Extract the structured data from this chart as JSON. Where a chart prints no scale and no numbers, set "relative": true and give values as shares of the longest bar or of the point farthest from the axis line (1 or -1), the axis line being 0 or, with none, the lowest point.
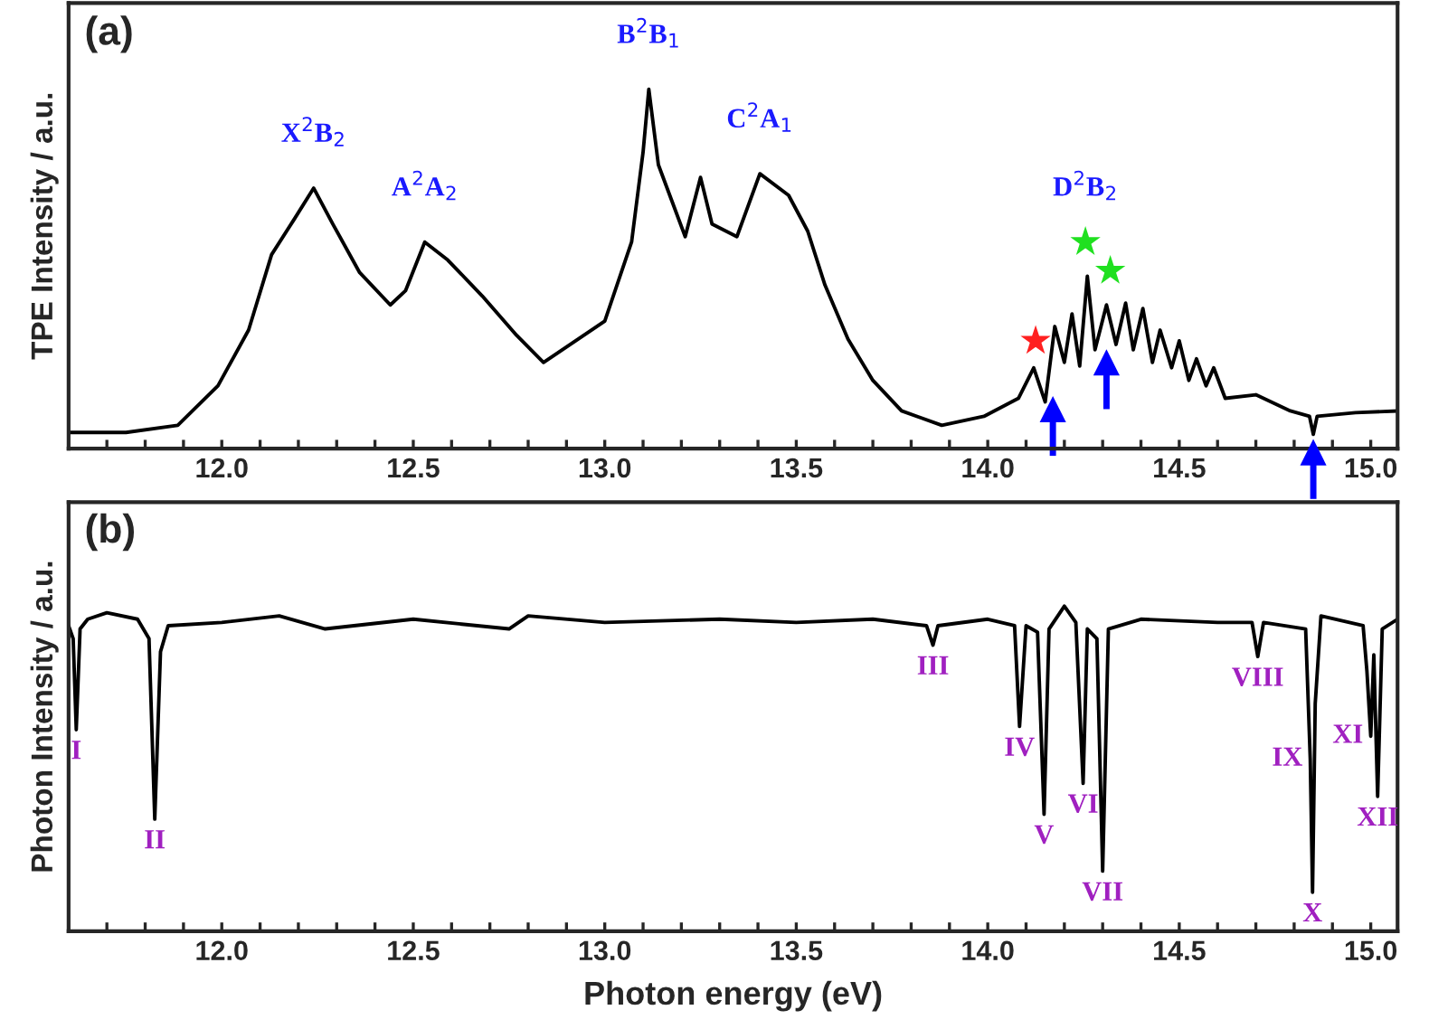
{
  "chart_data": [
    {
      "type": "line",
      "relative": true,
      "ylabel": "TPE Intensity / a.u.",
      "xlim": [
        11.6,
        15.07
      ],
      "xticks": [
        {
          "value": 11.7,
          "label": null
        },
        {
          "value": 11.8,
          "label": null
        },
        {
          "value": 11.9,
          "label": null
        },
        {
          "value": 12.0,
          "label": "12.0"
        },
        {
          "value": 12.1,
          "label": null
        },
        {
          "value": 12.2,
          "label": null
        },
        {
          "value": 12.3,
          "label": null
        },
        {
          "value": 12.4,
          "label": null
        },
        {
          "value": 12.5,
          "label": "12.5"
        },
        {
          "value": 12.6,
          "label": null
        },
        {
          "value": 12.7,
          "label": null
        },
        {
          "value": 12.8,
          "label": null
        },
        {
          "value": 12.9,
          "label": null
        },
        {
          "value": 13.0,
          "label": "13.0"
        },
        {
          "value": 13.1,
          "label": null
        },
        {
          "value": 13.2,
          "label": null
        },
        {
          "value": 13.3,
          "label": null
        },
        {
          "value": 13.4,
          "label": null
        },
        {
          "value": 13.5,
          "label": "13.5"
        },
        {
          "value": 13.6,
          "label": null
        },
        {
          "value": 13.7,
          "label": null
        },
        {
          "value": 13.8,
          "label": null
        },
        {
          "value": 13.9,
          "label": null
        },
        {
          "value": 14.0,
          "label": "14.0"
        },
        {
          "value": 14.1,
          "label": null
        },
        {
          "value": 14.2,
          "label": null
        },
        {
          "value": 14.3,
          "label": null
        },
        {
          "value": 14.4,
          "label": null
        },
        {
          "value": 14.5,
          "label": "14.5"
        },
        {
          "value": 14.6,
          "label": null
        },
        {
          "value": 14.7,
          "label": null
        },
        {
          "value": 14.8,
          "label": null
        },
        {
          "value": 14.9,
          "label": null
        },
        {
          "value": 15.0,
          "label": "15.0"
        }
      ],
      "grid": false,
      "legend": false,
      "series": [
        {
          "type": "line",
          "color": "#000000",
          "x": [
            11.6,
            11.75,
            11.885,
            11.99,
            12.07,
            12.13,
            12.19,
            12.24,
            12.29,
            12.36,
            12.44,
            12.48,
            12.53,
            12.59,
            12.68,
            12.77,
            12.84,
            12.91,
            13.0,
            13.07,
            13.1,
            13.115,
            13.14,
            13.175,
            13.21,
            13.25,
            13.28,
            13.345,
            13.405,
            13.48,
            13.53,
            13.575,
            13.635,
            13.7,
            13.775,
            13.88,
            13.99,
            14.08,
            14.12,
            14.15,
            14.175,
            14.2,
            14.22,
            14.24,
            14.26,
            14.28,
            14.31,
            14.335,
            14.36,
            14.38,
            14.405,
            14.43,
            14.45,
            14.48,
            14.5,
            14.525,
            14.545,
            14.57,
            14.59,
            14.62,
            14.7,
            14.79,
            14.84,
            14.85,
            14.86,
            14.96,
            15.07
          ],
          "values": [
            0.045,
            0.045,
            0.065,
            0.175,
            0.33,
            0.54,
            0.64,
            0.725,
            0.625,
            0.49,
            0.4,
            0.44,
            0.575,
            0.525,
            0.425,
            0.315,
            0.24,
            0.29,
            0.355,
            0.575,
            0.825,
            1.0,
            0.79,
            0.69,
            0.59,
            0.755,
            0.625,
            0.59,
            0.765,
            0.705,
            0.605,
            0.455,
            0.305,
            0.19,
            0.105,
            0.065,
            0.09,
            0.14,
            0.225,
            0.13,
            0.34,
            0.24,
            0.375,
            0.23,
            0.48,
            0.275,
            0.4,
            0.29,
            0.405,
            0.275,
            0.39,
            0.24,
            0.33,
            0.225,
            0.3,
            0.19,
            0.25,
            0.175,
            0.225,
            0.14,
            0.15,
            0.105,
            0.09,
            0.04,
            0.09,
            0.1,
            0.105
          ]
        },
        {
          "type": "scatter",
          "marker": "star",
          "x": [
            14.125,
            14.255,
            14.32
          ],
          "values": [
            0.3,
            0.575,
            0.495
          ],
          "colors": [
            "#ff2020",
            "#20e020",
            "#20e020"
          ]
        },
        {
          "type": "scatter",
          "marker": "triangle",
          "color": "#0000ff",
          "x": [
            14.17,
            14.31,
            14.85
          ],
          "values": [
            0.11,
            0.24,
            -0.01
          ]
        }
      ],
      "annotations": [
        "(a)",
        {
          "text": "X$^{2}$B$_{2}$",
          "x": 12.24,
          "y": 0.725
        },
        {
          "text": "A$^{2}$A$_{2}$",
          "x": 12.53,
          "y": 0.575
        },
        {
          "text": "B$^{2}$B$_{1}$",
          "x": 13.115,
          "y": 1.0
        },
        {
          "text": "C$^{2}$A$_{1}$",
          "x": 13.405,
          "y": 0.765
        },
        {
          "text": "D$^{2}$B$_{2}$",
          "x": 14.255,
          "y": 0.575
        }
      ]
    },
    {
      "type": "line",
      "relative": true,
      "ylabel": "Photon Intensity / a.u.",
      "xlabel": "Photon energy (eV)",
      "xlim": [
        11.6,
        15.07
      ],
      "xticks": [
        {
          "value": 11.7,
          "label": null
        },
        {
          "value": 11.8,
          "label": null
        },
        {
          "value": 11.9,
          "label": null
        },
        {
          "value": 12.0,
          "label": "12.0"
        },
        {
          "value": 12.1,
          "label": null
        },
        {
          "value": 12.2,
          "label": null
        },
        {
          "value": 12.3,
          "label": null
        },
        {
          "value": 12.4,
          "label": null
        },
        {
          "value": 12.5,
          "label": "12.5"
        },
        {
          "value": 12.6,
          "label": null
        },
        {
          "value": 12.7,
          "label": null
        },
        {
          "value": 12.8,
          "label": null
        },
        {
          "value": 12.9,
          "label": null
        },
        {
          "value": 13.0,
          "label": "13.0"
        },
        {
          "value": 13.1,
          "label": null
        },
        {
          "value": 13.2,
          "label": null
        },
        {
          "value": 13.3,
          "label": null
        },
        {
          "value": 13.4,
          "label": null
        },
        {
          "value": 13.5,
          "label": "13.5"
        },
        {
          "value": 13.6,
          "label": null
        },
        {
          "value": 13.7,
          "label": null
        },
        {
          "value": 13.8,
          "label": null
        },
        {
          "value": 13.9,
          "label": null
        },
        {
          "value": 14.0,
          "label": "14.0"
        },
        {
          "value": 14.1,
          "label": null
        },
        {
          "value": 14.2,
          "label": null
        },
        {
          "value": 14.3,
          "label": null
        },
        {
          "value": 14.4,
          "label": null
        },
        {
          "value": 14.5,
          "label": "14.5"
        },
        {
          "value": 14.6,
          "label": null
        },
        {
          "value": 14.7,
          "label": null
        },
        {
          "value": 14.8,
          "label": null
        },
        {
          "value": 14.9,
          "label": null
        },
        {
          "value": 15.0,
          "label": "15.0"
        }
      ],
      "grid": false,
      "legend": false,
      "series": [
        {
          "type": "line",
          "color": "#000000",
          "x": [
            11.6,
            11.612,
            11.62,
            11.63,
            11.65,
            11.7,
            11.78,
            11.81,
            11.825,
            11.84,
            11.86,
            12.0,
            12.15,
            12.27,
            12.5,
            12.75,
            12.8,
            13.0,
            13.3,
            13.5,
            13.7,
            13.84,
            13.857,
            13.87,
            14.0,
            14.07,
            14.083,
            14.1,
            14.13,
            14.147,
            14.16,
            14.2,
            14.23,
            14.249,
            14.26,
            14.285,
            14.3,
            14.315,
            14.4,
            14.6,
            14.69,
            14.705,
            14.72,
            14.83,
            14.842,
            14.848,
            14.855,
            14.87,
            14.98,
            14.99,
            15.0,
            15.008,
            15.018,
            15.03,
            15.07
          ],
          "values": [
            0.94,
            0.9,
            0.62,
            0.93,
            0.96,
            0.98,
            0.96,
            0.9,
            0.345,
            0.86,
            0.94,
            0.95,
            0.97,
            0.93,
            0.96,
            0.93,
            0.97,
            0.95,
            0.96,
            0.95,
            0.96,
            0.94,
            0.88,
            0.94,
            0.96,
            0.94,
            0.63,
            0.94,
            0.92,
            0.36,
            0.93,
            1.0,
            0.95,
            0.455,
            0.93,
            0.9,
            0.185,
            0.93,
            0.96,
            0.95,
            0.95,
            0.845,
            0.95,
            0.93,
            0.53,
            0.12,
            0.7,
            0.97,
            0.94,
            0.8,
            0.6,
            0.85,
            0.415,
            0.93,
            0.96
          ]
        }
      ],
      "annotations": [
        "(b)",
        {
          "text": "I",
          "x": 11.62,
          "y": 0.62
        },
        {
          "text": "II",
          "x": 11.825,
          "y": 0.345
        },
        {
          "text": "III",
          "x": 13.857,
          "y": 0.88
        },
        {
          "text": "IV",
          "x": 14.083,
          "y": 0.63
        },
        {
          "text": "V",
          "x": 14.147,
          "y": 0.36
        },
        {
          "text": "VI",
          "x": 14.249,
          "y": 0.455
        },
        {
          "text": "VII",
          "x": 14.3,
          "y": 0.185
        },
        {
          "text": "VIII",
          "x": 14.705,
          "y": 0.845
        },
        {
          "text": "IX",
          "x": 14.842,
          "y": 0.53
        },
        {
          "text": "X",
          "x": 14.848,
          "y": 0.12
        },
        {
          "text": "XI",
          "x": 15.0,
          "y": 0.6
        },
        {
          "text": "XII",
          "x": 15.018,
          "y": 0.415
        }
      ]
    }
  ]
}
